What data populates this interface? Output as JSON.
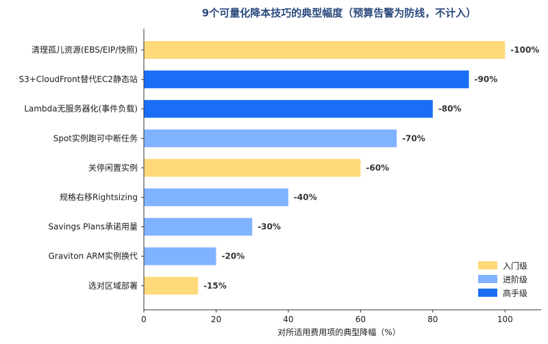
{
  "chart_data": {
    "type": "bar",
    "orientation": "horizontal",
    "title": "9个可量化降本技巧的典型幅度（预算告警为防线，不计入）",
    "xlabel": "对所适用费用项的典型降幅（%）",
    "ylabel": "",
    "xlim": [
      0,
      110
    ],
    "xticks": [
      0,
      20,
      40,
      60,
      80,
      100
    ],
    "grid": false,
    "legend_position": "bottom-right",
    "legend": [
      {
        "name": "入门级",
        "color": "#ffd97a"
      },
      {
        "name": "进阶级",
        "color": "#80b3ff"
      },
      {
        "name": "高手级",
        "color": "#1a6ef5"
      }
    ],
    "bars": [
      {
        "category": "清理孤儿资源(EBS/EIP/快照)",
        "value": 100,
        "label": "-100%",
        "level": 0
      },
      {
        "category": "S3+CloudFront替代EC2静态站",
        "value": 90,
        "label": "-90%",
        "level": 2
      },
      {
        "category": "Lambda无服务器化(事件负载)",
        "value": 80,
        "label": "-80%",
        "level": 2
      },
      {
        "category": "Spot实例跑可中断任务",
        "value": 70,
        "label": "-70%",
        "level": 1
      },
      {
        "category": "关停闲置实例",
        "value": 60,
        "label": "-60%",
        "level": 0
      },
      {
        "category": "规格右移Rightsizing",
        "value": 40,
        "label": "-40%",
        "level": 1
      },
      {
        "category": "Savings Plans承诺用量",
        "value": 30,
        "label": "-30%",
        "level": 1
      },
      {
        "category": "Graviton ARM实例换代",
        "value": 20,
        "label": "-20%",
        "level": 1
      },
      {
        "category": "选对区域部署",
        "value": 15,
        "label": "-15%",
        "level": 0
      }
    ]
  }
}
